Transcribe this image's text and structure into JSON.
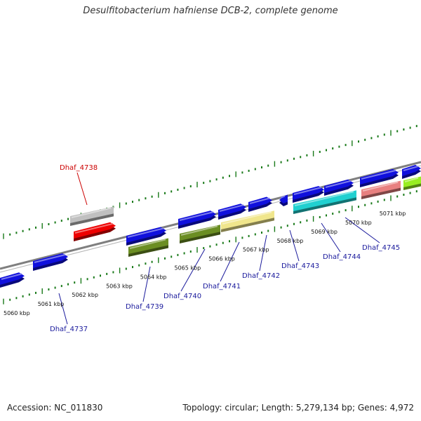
{
  "title": "Desulfitobacterium hafniense DCB-2, complete genome",
  "footer": {
    "accession": "Accession: NC_011830",
    "stats": "Topology: circular; Length: 5,279,134 bp; Genes: 4,972"
  },
  "colors": {
    "backbone": "#7f7f7f",
    "tick": "#1a7a1a",
    "label_default": "#1a1a9c",
    "label_highlight": "#cc0000"
  },
  "scale_labels": [
    "5060 kbp",
    "5061 kbp",
    "5062 kbp",
    "5063 kbp",
    "5064 kbp",
    "5065 kbp",
    "5066 kbp",
    "5067 kbp",
    "5068 kbp",
    "5069 kbp",
    "5070 kbp",
    "5071 kbp"
  ],
  "gene_labels": [
    {
      "text": "Dhaf_4738",
      "color": "#cc0000"
    },
    {
      "text": "Dhaf_4737",
      "color": "#1a1a9c"
    },
    {
      "text": "Dhaf_4739",
      "color": "#1a1a9c"
    },
    {
      "text": "Dhaf_4740",
      "color": "#1a1a9c"
    },
    {
      "text": "Dhaf_4741",
      "color": "#1a1a9c"
    },
    {
      "text": "Dhaf_4742",
      "color": "#1a1a9c"
    },
    {
      "text": "Dhaf_4743",
      "color": "#1a1a9c"
    },
    {
      "text": "Dhaf_4744",
      "color": "#1a1a9c"
    },
    {
      "text": "Dhaf_4745",
      "color": "#1a1a9c"
    }
  ],
  "feature_colors": [
    "#1010dd",
    "#1010dd",
    "#c0c0c0",
    "#ee0000",
    "#1010dd",
    "#6b8e23",
    "#1010dd",
    "#6b8e23",
    "#1010dd",
    "#f0e68c",
    "#1010dd",
    "#1010dd",
    "#1010dd",
    "#1010dd",
    "#20d0d0",
    "#1010dd",
    "#e88080",
    "#1010dd",
    "#99ee22"
  ]
}
